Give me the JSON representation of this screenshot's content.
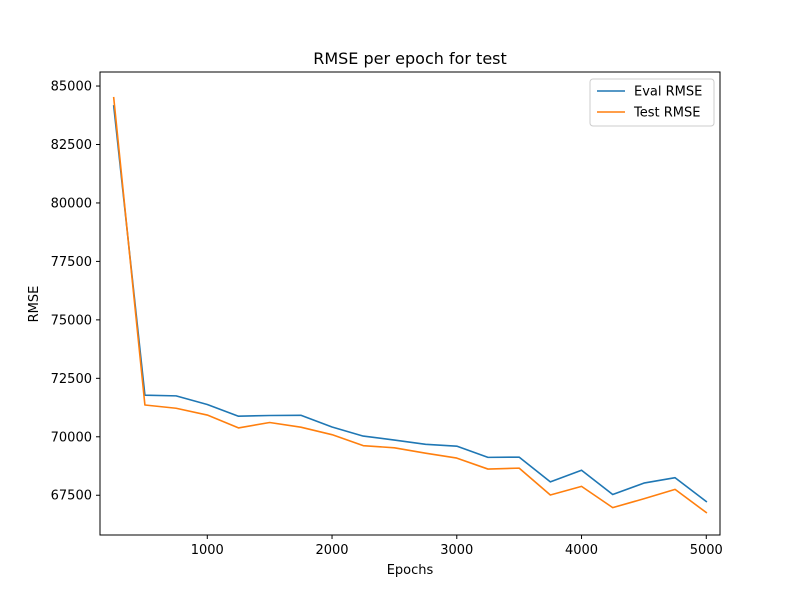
{
  "chart_data": {
    "type": "line",
    "title": "RMSE per epoch for test",
    "xlabel": "Epochs",
    "ylabel": "RMSE",
    "xlim": [
      140,
      5110
    ],
    "ylim": [
      65800,
      85600
    ],
    "xticks": [
      1000,
      2000,
      3000,
      4000,
      5000
    ],
    "yticks": [
      67500,
      70000,
      72500,
      75000,
      77500,
      80000,
      82500,
      85000
    ],
    "grid": false,
    "legend_position": "upper right",
    "x": [
      250,
      500,
      750,
      1000,
      1250,
      1500,
      1750,
      2000,
      2250,
      2500,
      2750,
      3000,
      3250,
      3500,
      3750,
      4000,
      4250,
      4500,
      4750,
      5000
    ],
    "series": [
      {
        "name": "Eval RMSE",
        "color": "#1f77b4",
        "values": [
          84150,
          71780,
          71750,
          71380,
          70880,
          70910,
          70920,
          70420,
          70030,
          69860,
          69680,
          69600,
          69120,
          69130,
          68070,
          68570,
          67530,
          68020,
          68250,
          67230
        ]
      },
      {
        "name": "Test RMSE",
        "color": "#ff7f0e",
        "values": [
          84500,
          71360,
          71220,
          70930,
          70380,
          70610,
          70410,
          70090,
          69620,
          69530,
          69300,
          69090,
          68620,
          68660,
          67510,
          67880,
          66970,
          67350,
          67750,
          66760
        ]
      }
    ]
  }
}
